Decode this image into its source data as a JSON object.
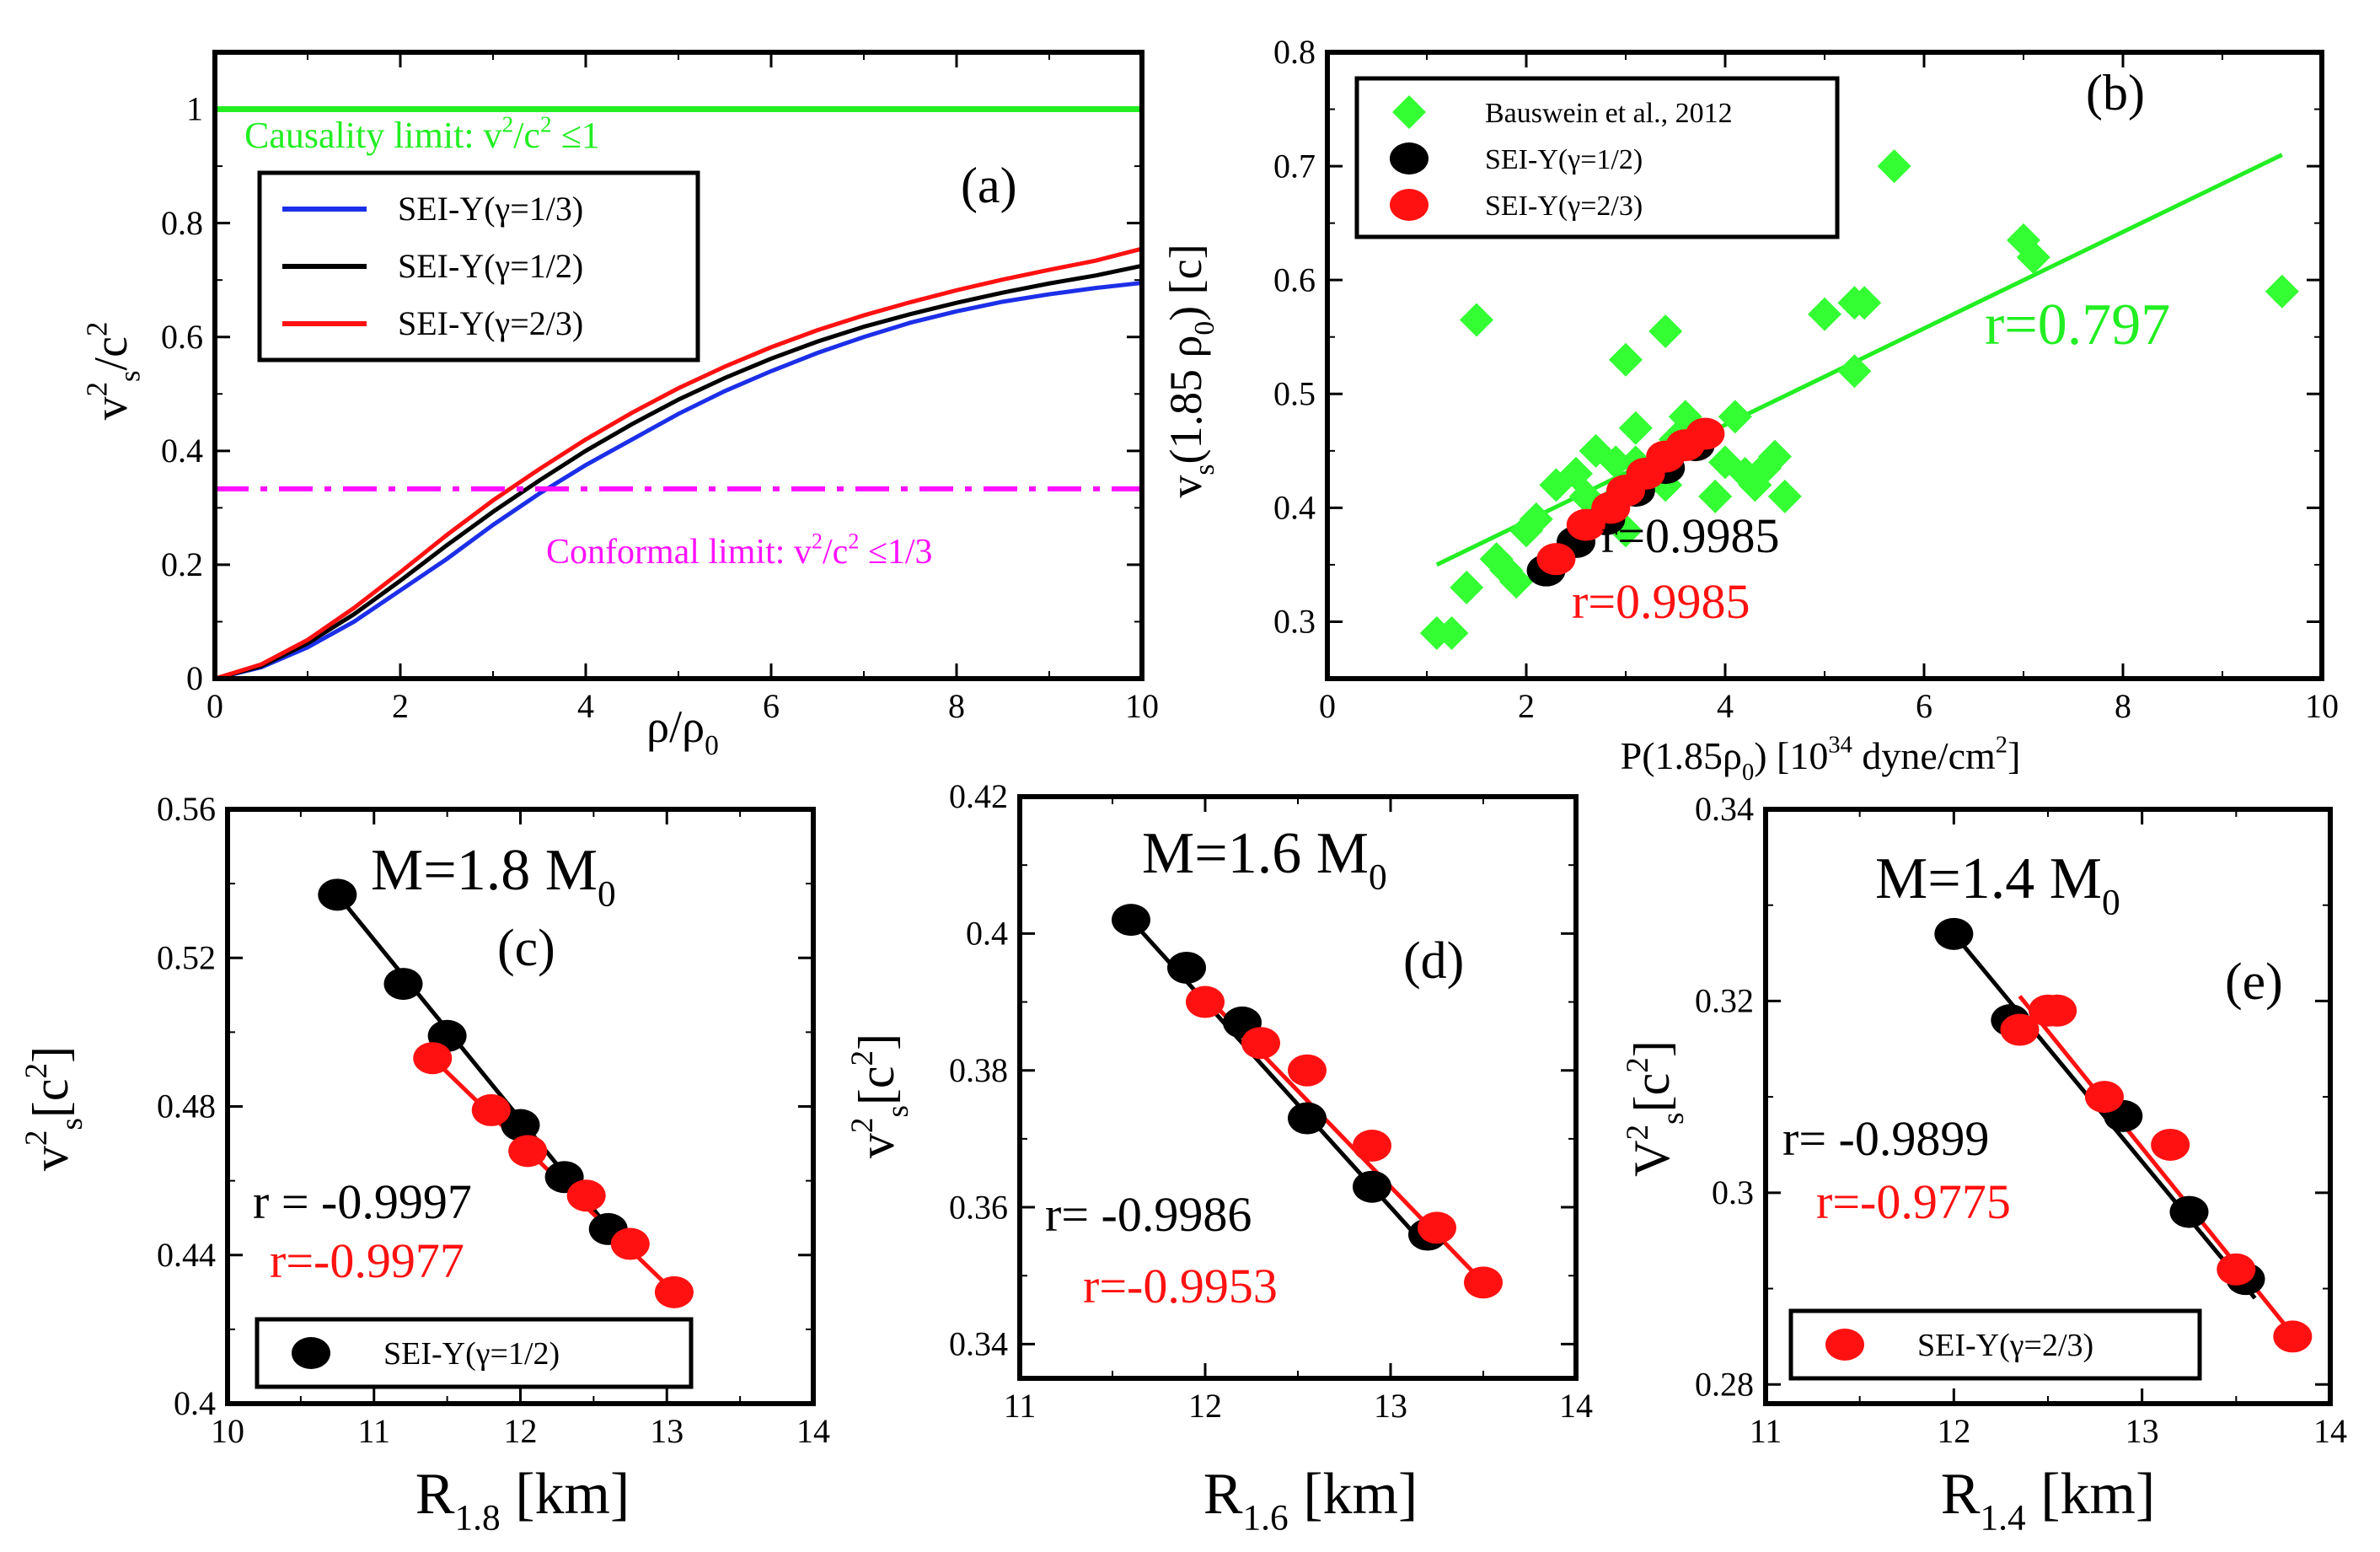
{
  "figure": {
    "colors": {
      "green": "#22ee22",
      "black": "#000000",
      "red": "#ff1111",
      "blue": "#1c2fe8",
      "magenta": "#ff10ff",
      "bauswein": "#33ff33"
    }
  },
  "chart_data": [
    {
      "panel": "a",
      "type": "line",
      "label": "(a)",
      "xlabel": "ρ/ρ",
      "xlabel_sub": "0",
      "ylabel_base": "v",
      "ylabel_sup": "2",
      "ylabel_sub": "s",
      "ylabel_tail": "/c",
      "ylabel_tail_sup": "2",
      "xlim": [
        0,
        10
      ],
      "ylim": [
        0,
        1.1
      ],
      "xticks": [
        0,
        2,
        4,
        6,
        8,
        10
      ],
      "xtick_labels": [
        "0",
        "2",
        "4",
        "6",
        "8",
        "10"
      ],
      "yticks": [
        0,
        0.2,
        0.4,
        0.6,
        0.8,
        1
      ],
      "ytick_labels": [
        "0",
        "0.2",
        "0.4",
        "0.6",
        "0.8",
        "1"
      ],
      "series": [
        {
          "name": "SEI-Y(γ=1/3)",
          "color": "#1c2fe8",
          "x": [
            0,
            0.5,
            1,
            1.5,
            2,
            2.5,
            3,
            3.5,
            4,
            4.5,
            5,
            5.5,
            6,
            6.5,
            7,
            7.5,
            8,
            8.5,
            9,
            9.5,
            10
          ],
          "y": [
            0,
            0.02,
            0.055,
            0.1,
            0.155,
            0.21,
            0.27,
            0.325,
            0.375,
            0.42,
            0.465,
            0.505,
            0.54,
            0.572,
            0.6,
            0.625,
            0.645,
            0.662,
            0.675,
            0.686,
            0.695
          ]
        },
        {
          "name": "SEI-Y(γ=1/2)",
          "color": "#000000",
          "x": [
            0,
            0.5,
            1,
            1.5,
            2,
            2.5,
            3,
            3.5,
            4,
            4.5,
            5,
            5.5,
            6,
            6.5,
            7,
            7.5,
            8,
            8.5,
            9,
            9.5,
            10
          ],
          "y": [
            0,
            0.022,
            0.062,
            0.113,
            0.172,
            0.234,
            0.293,
            0.348,
            0.4,
            0.447,
            0.49,
            0.528,
            0.562,
            0.592,
            0.618,
            0.64,
            0.66,
            0.678,
            0.694,
            0.708,
            0.725
          ]
        },
        {
          "name": "SEI-Y(γ=2/3)",
          "color": "#ff1111",
          "x": [
            0,
            0.5,
            1,
            1.5,
            2,
            2.5,
            3,
            3.5,
            4,
            4.5,
            5,
            5.5,
            6,
            6.5,
            7,
            7.5,
            8,
            8.5,
            9,
            9.5,
            10
          ],
          "y": [
            0,
            0.025,
            0.068,
            0.124,
            0.187,
            0.252,
            0.313,
            0.368,
            0.42,
            0.467,
            0.51,
            0.548,
            0.582,
            0.612,
            0.638,
            0.661,
            0.682,
            0.701,
            0.718,
            0.734,
            0.755
          ]
        }
      ],
      "hlines": [
        {
          "name": "causality-limit",
          "y": 1.0,
          "color": "#22ee22",
          "label": "Causality limit: v",
          "sup": "2",
          "label_tail": "/c",
          "sup2": "2",
          "label_end": " ≤1"
        },
        {
          "name": "conformal-limit",
          "y": 0.3333,
          "color": "#ff10ff",
          "dashed": true,
          "label": "Conformal limit: v",
          "sup": "2",
          "label_tail": "/c",
          "sup2": "2",
          "label_end": " ≤1/3"
        }
      ],
      "legend": {
        "position": "upper-left",
        "entries": [
          "SEI-Y(γ=1/3)",
          "SEI-Y(γ=1/2)",
          "SEI-Y(γ=2/3)"
        ]
      }
    },
    {
      "panel": "b",
      "type": "scatter",
      "label": "(b)",
      "xlabel": "P(1.85ρ",
      "xlabel_sub": "0",
      "xlabel_mid": ")  [10",
      "xlabel_sup": "34",
      "xlabel_tail": " dyne/cm",
      "xlabel_sup2": "2",
      "xlabel_end": "]",
      "ylabel": "v",
      "ylabel_sub": "s",
      "ylabel_tail": "(1.85 ρ",
      "ylabel_sub2": "0",
      "ylabel_end": ") [c]",
      "xlim": [
        0,
        10
      ],
      "ylim": [
        0.25,
        0.8
      ],
      "xticks": [
        0,
        2,
        4,
        6,
        8,
        10
      ],
      "xtick_labels": [
        "0",
        "2",
        "4",
        "6",
        "8",
        "10"
      ],
      "yticks": [
        0.3,
        0.4,
        0.5,
        0.6,
        0.7,
        0.8
      ],
      "ytick_labels": [
        "0.3",
        "0.4",
        "0.5",
        "0.6",
        "0.7",
        "0.8"
      ],
      "series": [
        {
          "name": "Bauswein et al., 2012",
          "marker": "diamond",
          "color": "#33ff33",
          "x": [
            1.1,
            1.25,
            1.4,
            1.5,
            1.7,
            1.8,
            1.9,
            2.0,
            2.1,
            2.3,
            2.5,
            2.6,
            2.7,
            2.8,
            2.9,
            3.0,
            3.0,
            3.1,
            3.1,
            3.2,
            3.4,
            3.4,
            3.5,
            3.6,
            3.9,
            4.0,
            4.1,
            4.2,
            4.3,
            4.4,
            4.5,
            4.6,
            5.0,
            5.3,
            5.3,
            5.4,
            5.7,
            7.0,
            7.1,
            9.6
          ],
          "y": [
            0.29,
            0.29,
            0.33,
            0.565,
            0.355,
            0.345,
            0.335,
            0.38,
            0.39,
            0.42,
            0.43,
            0.41,
            0.45,
            0.4,
            0.44,
            0.53,
            0.38,
            0.47,
            0.44,
            0.43,
            0.555,
            0.42,
            0.46,
            0.48,
            0.41,
            0.44,
            0.48,
            0.43,
            0.42,
            0.435,
            0.445,
            0.41,
            0.57,
            0.58,
            0.52,
            0.58,
            0.7,
            0.635,
            0.62,
            0.59
          ]
        },
        {
          "name": "SEI-Y(γ=1/2)",
          "marker": "circle",
          "color": "#000000",
          "x": [
            2.2,
            2.5,
            2.8,
            3.1,
            3.4,
            3.7
          ],
          "y": [
            0.345,
            0.37,
            0.39,
            0.415,
            0.435,
            0.455
          ]
        },
        {
          "name": "SEI-Y(γ=2/3)",
          "marker": "circle",
          "color": "#ff1111",
          "x": [
            2.3,
            2.6,
            2.85,
            3.0,
            3.2,
            3.4,
            3.6,
            3.8
          ],
          "y": [
            0.355,
            0.385,
            0.4,
            0.415,
            0.43,
            0.445,
            0.455,
            0.465
          ]
        }
      ],
      "fits": [
        {
          "color": "#22ee22",
          "x": [
            1.1,
            9.6
          ],
          "y": [
            0.35,
            0.71
          ]
        },
        {
          "color": "#000000",
          "x": [
            2.2,
            3.8
          ],
          "y": [
            0.345,
            0.463
          ]
        },
        {
          "color": "#ff1111",
          "x": [
            2.3,
            3.8
          ],
          "y": [
            0.355,
            0.468
          ]
        }
      ],
      "annotations": [
        {
          "text": "r=0.797",
          "color": "#22ee22"
        },
        {
          "text": "r=0.9985",
          "color": "#000000"
        },
        {
          "text": "r=0.9985",
          "color": "#ff1111"
        }
      ],
      "legend": {
        "position": "upper-left",
        "entries": [
          "Bauswein et al., 2012",
          "SEI-Y(γ=1/2)",
          "SEI-Y(γ=2/3)"
        ]
      }
    },
    {
      "panel": "c",
      "type": "scatter",
      "label": "(c)",
      "title": "M=1.8 M",
      "title_sub": "0",
      "xlabel": "R",
      "xlabel_sub": "1.8",
      "xlabel_tail": " [km]",
      "ylabel": "v",
      "ylabel_sup": "2",
      "ylabel_sub": "s",
      "ylabel_tail": "[c",
      "ylabel_sup2": "2",
      "ylabel_end": "]",
      "xlim": [
        10,
        14
      ],
      "ylim": [
        0.4,
        0.56
      ],
      "xticks": [
        10,
        11,
        12,
        13,
        14
      ],
      "xtick_labels": [
        "10",
        "11",
        "12",
        "13",
        "14"
      ],
      "yticks": [
        0.4,
        0.44,
        0.48,
        0.52,
        0.56
      ],
      "ytick_labels": [
        "0.4",
        "0.44",
        "0.48",
        "0.52",
        "0.56"
      ],
      "series": [
        {
          "name": "SEI-Y(γ=1/2)",
          "color": "#000000",
          "x": [
            10.75,
            11.2,
            11.5,
            12.0,
            12.3,
            12.6
          ],
          "y": [
            0.537,
            0.513,
            0.499,
            0.475,
            0.461,
            0.447
          ]
        },
        {
          "name": "SEI-Y(γ=2/3)",
          "color": "#ff1111",
          "x": [
            11.4,
            11.8,
            12.05,
            12.45,
            12.75,
            13.05
          ],
          "y": [
            0.493,
            0.479,
            0.468,
            0.456,
            0.443,
            0.43
          ]
        }
      ],
      "fits": [
        {
          "color": "#000000",
          "x": [
            10.75,
            12.65
          ],
          "y": [
            0.537,
            0.445
          ]
        },
        {
          "color": "#ff1111",
          "x": [
            11.4,
            13.05
          ],
          "y": [
            0.493,
            0.43
          ]
        }
      ],
      "annotations": [
        {
          "text": "r = -0.9997",
          "color": "#000000"
        },
        {
          "text": "r=-0.9977",
          "color": "#ff1111"
        }
      ],
      "legend": {
        "position": "lower-left",
        "entries": [
          "SEI-Y(γ=1/2)"
        ]
      }
    },
    {
      "panel": "d",
      "type": "scatter",
      "label": "(d)",
      "title": "M=1.6 M",
      "title_sub": "0",
      "xlabel": "R",
      "xlabel_sub": "1.6",
      "xlabel_tail": " [km]",
      "ylabel": "v",
      "ylabel_sup": "2",
      "ylabel_sub": "s",
      "ylabel_tail": "[c",
      "ylabel_sup2": "2",
      "ylabel_end": "]",
      "xlim": [
        11,
        14
      ],
      "ylim": [
        0.335,
        0.42
      ],
      "xticks": [
        11,
        12,
        13,
        14
      ],
      "xtick_labels": [
        "11",
        "12",
        "13",
        "14"
      ],
      "yticks": [
        0.34,
        0.36,
        0.38,
        0.4,
        0.42
      ],
      "ytick_labels": [
        "0.34",
        "0.36",
        "0.38",
        "0.4",
        "0.42"
      ],
      "series": [
        {
          "name": "SEI-Y(γ=1/2)",
          "color": "#000000",
          "x": [
            11.6,
            11.9,
            12.2,
            12.55,
            12.9,
            13.2
          ],
          "y": [
            0.402,
            0.395,
            0.387,
            0.373,
            0.363,
            0.356
          ]
        },
        {
          "name": "SEI-Y(γ=2/3)",
          "color": "#ff1111",
          "x": [
            12.0,
            12.3,
            12.55,
            12.9,
            13.25,
            13.5
          ],
          "y": [
            0.39,
            0.384,
            0.38,
            0.369,
            0.357,
            0.349
          ]
        }
      ],
      "fits": [
        {
          "color": "#000000",
          "x": [
            11.6,
            13.2
          ],
          "y": [
            0.402,
            0.354
          ]
        },
        {
          "color": "#ff1111",
          "x": [
            12.0,
            13.5
          ],
          "y": [
            0.391,
            0.349
          ]
        }
      ],
      "annotations": [
        {
          "text": "r= -0.9986",
          "color": "#000000"
        },
        {
          "text": "r=-0.9953",
          "color": "#ff1111"
        }
      ]
    },
    {
      "panel": "e",
      "type": "scatter",
      "label": "(e)",
      "title": "M=1.4 M",
      "title_sub": "0",
      "xlabel": "R",
      "xlabel_sub": "1.4",
      "xlabel_tail": " [km]",
      "ylabel": "V",
      "ylabel_sup": "2",
      "ylabel_sub": "s",
      "ylabel_tail": "[c",
      "ylabel_sup2": "2",
      "ylabel_end": "]",
      "xlim": [
        11,
        14
      ],
      "ylim": [
        0.278,
        0.34
      ],
      "xticks": [
        11,
        12,
        13,
        14
      ],
      "xtick_labels": [
        "11",
        "12",
        "13",
        "14"
      ],
      "yticks": [
        0.28,
        0.3,
        0.32,
        0.34
      ],
      "ytick_labels": [
        "0.28",
        "0.3",
        "0.32",
        "0.34"
      ],
      "series": [
        {
          "name": "SEI-Y(γ=1/2)",
          "color": "#000000",
          "x": [
            12.0,
            12.3,
            12.9,
            13.25,
            13.55
          ],
          "y": [
            0.327,
            0.318,
            0.308,
            0.298,
            0.291
          ]
        },
        {
          "name": "SEI-Y(γ=2/3)",
          "color": "#ff1111",
          "x": [
            12.35,
            12.5,
            12.55,
            12.8,
            13.15,
            13.5,
            13.8
          ],
          "y": [
            0.317,
            0.319,
            0.319,
            0.31,
            0.305,
            0.292,
            0.285
          ]
        }
      ],
      "fits": [
        {
          "color": "#000000",
          "x": [
            12.0,
            13.6
          ],
          "y": [
            0.327,
            0.289
          ]
        },
        {
          "color": "#ff1111",
          "x": [
            12.35,
            13.85
          ],
          "y": [
            0.3205,
            0.284
          ]
        }
      ],
      "annotations": [
        {
          "text": "r= -0.9899",
          "color": "#000000"
        },
        {
          "text": "r=-0.9775",
          "color": "#ff1111"
        }
      ],
      "legend": {
        "position": "lower-left",
        "entries": [
          "SEI-Y(γ=2/3)"
        ]
      }
    }
  ]
}
